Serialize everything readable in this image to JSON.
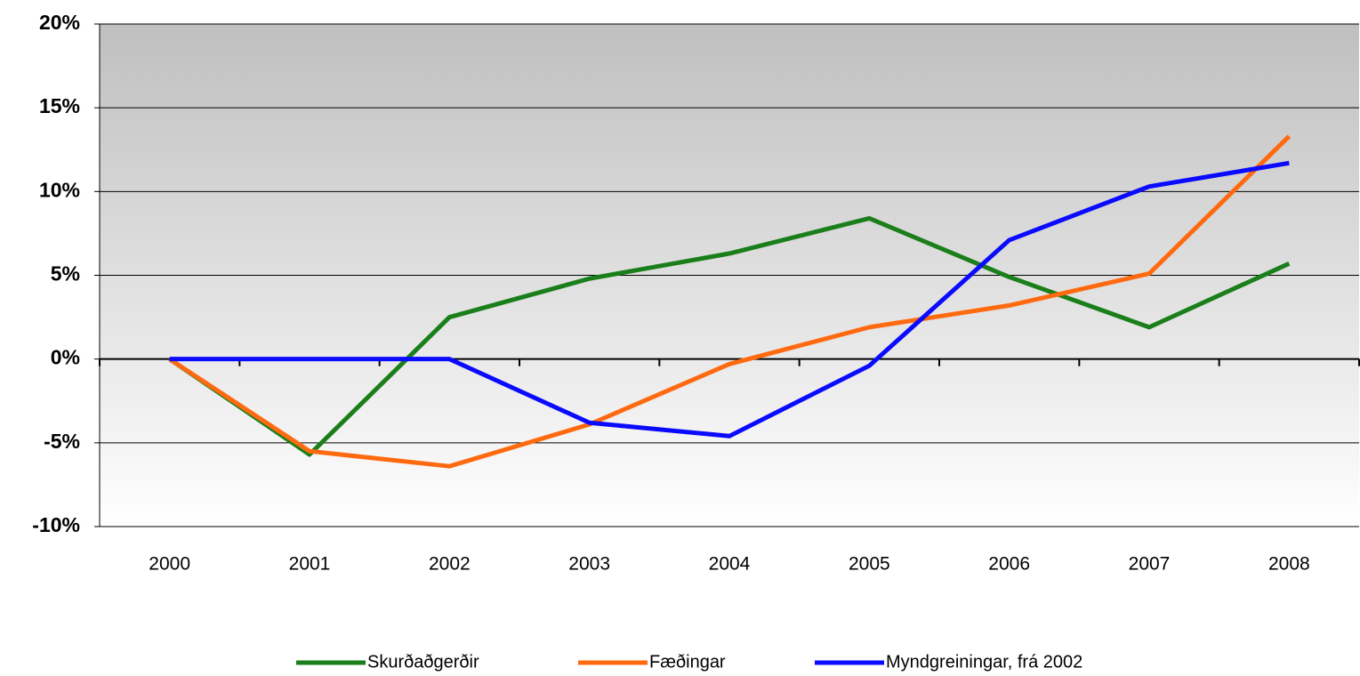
{
  "chart_data": {
    "type": "line",
    "categories": [
      "2000",
      "2001",
      "2002",
      "2003",
      "2004",
      "2005",
      "2006",
      "2007",
      "2008"
    ],
    "series": [
      {
        "name": "Skurðaðgerðir",
        "color": "#1a7f1a",
        "values": [
          0,
          -5.7,
          2.5,
          4.8,
          6.3,
          8.4,
          4.9,
          1.9,
          5.7
        ]
      },
      {
        "name": "Fæðingar",
        "color": "#ff6a10",
        "values": [
          0,
          -5.5,
          -6.4,
          -3.9,
          -0.3,
          1.9,
          3.2,
          5.1,
          13.3
        ]
      },
      {
        "name": "Myndgreiningar, frá 2002",
        "color": "#0a0aff",
        "values": [
          0,
          0,
          0,
          -3.8,
          -4.6,
          -0.4,
          7.1,
          10.3,
          11.7
        ]
      }
    ],
    "ylim": [
      -10,
      20
    ],
    "yticks": [
      {
        "value": -10,
        "label": "-10%"
      },
      {
        "value": -5,
        "label": "-5%"
      },
      {
        "value": 0,
        "label": "0%"
      },
      {
        "value": 5,
        "label": "5%"
      },
      {
        "value": 10,
        "label": "10%"
      },
      {
        "value": 15,
        "label": "15%"
      },
      {
        "value": 20,
        "label": "20%"
      }
    ],
    "grid": true,
    "legend": "bottom"
  }
}
